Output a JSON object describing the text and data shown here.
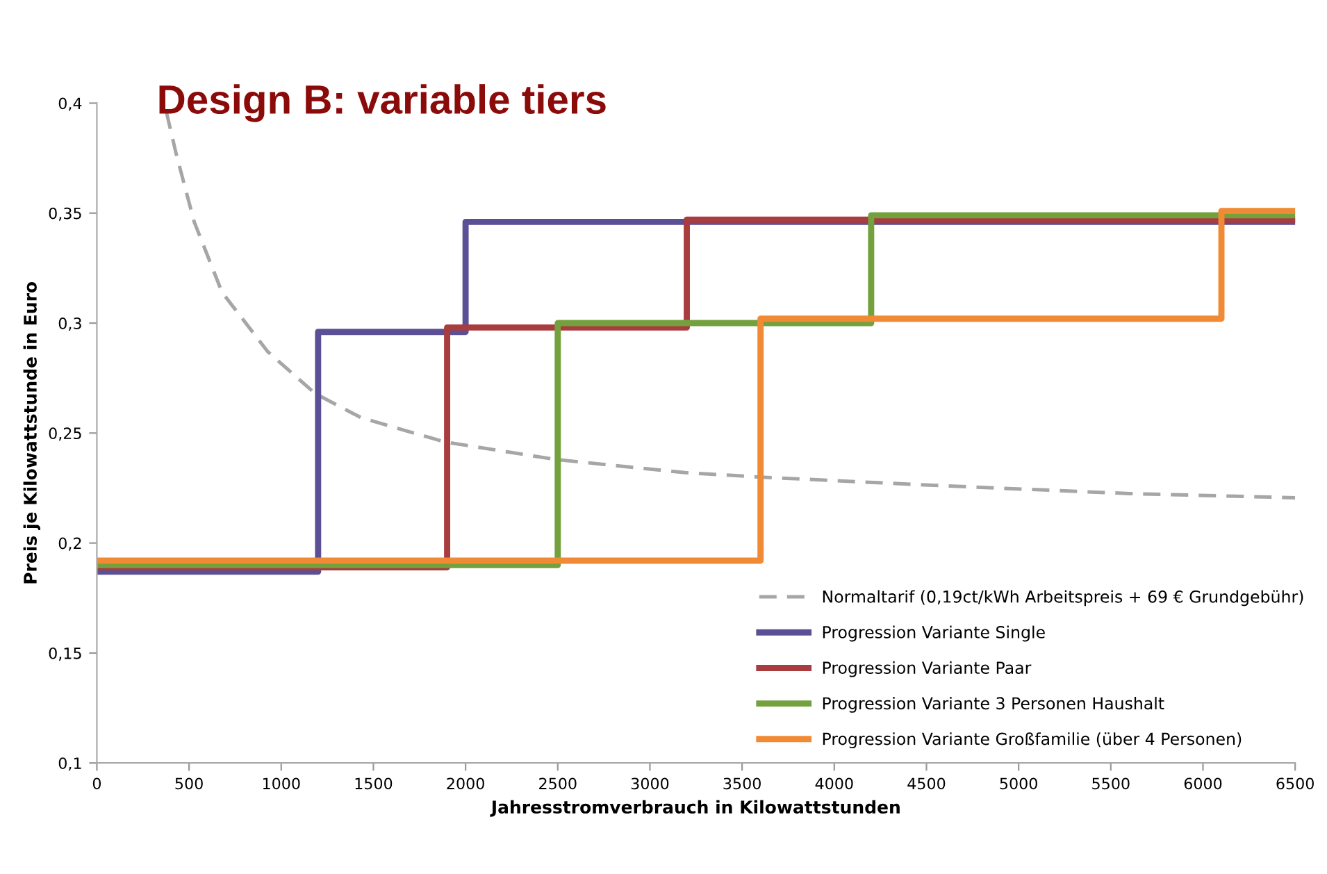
{
  "chart_data": {
    "type": "step",
    "title": "Design B: variable tiers",
    "xlabel": "Jahresstromverbrauch in Kilowattstunden",
    "ylabel": "Preis je Kilowattstunde in Euro",
    "xlim": [
      0,
      6500
    ],
    "xticks": [
      0,
      500,
      1000,
      1500,
      2000,
      2500,
      3000,
      3500,
      4000,
      4500,
      5000,
      5500,
      6000,
      6500
    ],
    "ylim": [
      0.1,
      0.4
    ],
    "yticks": [
      {
        "value": 0.1,
        "label": "0,1"
      },
      {
        "value": 0.15,
        "label": "0,15"
      },
      {
        "value": 0.2,
        "label": "0,2"
      },
      {
        "value": 0.25,
        "label": "0,25"
      },
      {
        "value": 0.3,
        "label": "0,3"
      },
      {
        "value": 0.35,
        "label": "0,35"
      },
      {
        "value": 0.4,
        "label": "0,4"
      }
    ],
    "grid": false,
    "legend": "bottom right",
    "series": [
      {
        "name": "Normaltarif (0,19ct/kWh Arbeitspreis + 69 € Grundgebühr)",
        "type": "line",
        "line_style": "dashed",
        "color": "#a6a6a6",
        "x": [
          377,
          430,
          528,
          679,
          927,
          1184,
          1433,
          1885,
          2488,
          3190,
          3596,
          4600,
          5602,
          6500
        ],
        "values": [
          0.396,
          0.377,
          0.346,
          0.314,
          0.287,
          0.268,
          0.257,
          0.246,
          0.238,
          0.232,
          0.23,
          0.226,
          0.2225,
          0.2206
        ]
      },
      {
        "name": "Progression Variante Single",
        "color": "#5b4f96",
        "x": [
          0,
          1200,
          2000,
          6500
        ],
        "values": [
          0.187,
          0.296,
          0.346,
          0.346
        ]
      },
      {
        "name": "Progression Variante Paar",
        "color": "#a83c3e",
        "x": [
          0,
          1900,
          3200,
          6500
        ],
        "values": [
          0.189,
          0.298,
          0.347,
          0.347
        ]
      },
      {
        "name": "Progression Variante 3 Personen Haushalt",
        "color": "#74a03e",
        "x": [
          0,
          2500,
          4200,
          6500
        ],
        "values": [
          0.19,
          0.3,
          0.349,
          0.349
        ]
      },
      {
        "name": "Progression Variante Großfamilie (über 4 Personen)",
        "color": "#f08a35",
        "x": [
          0,
          3600,
          6100,
          6500
        ],
        "values": [
          0.192,
          0.302,
          0.351,
          0.351
        ]
      }
    ]
  }
}
